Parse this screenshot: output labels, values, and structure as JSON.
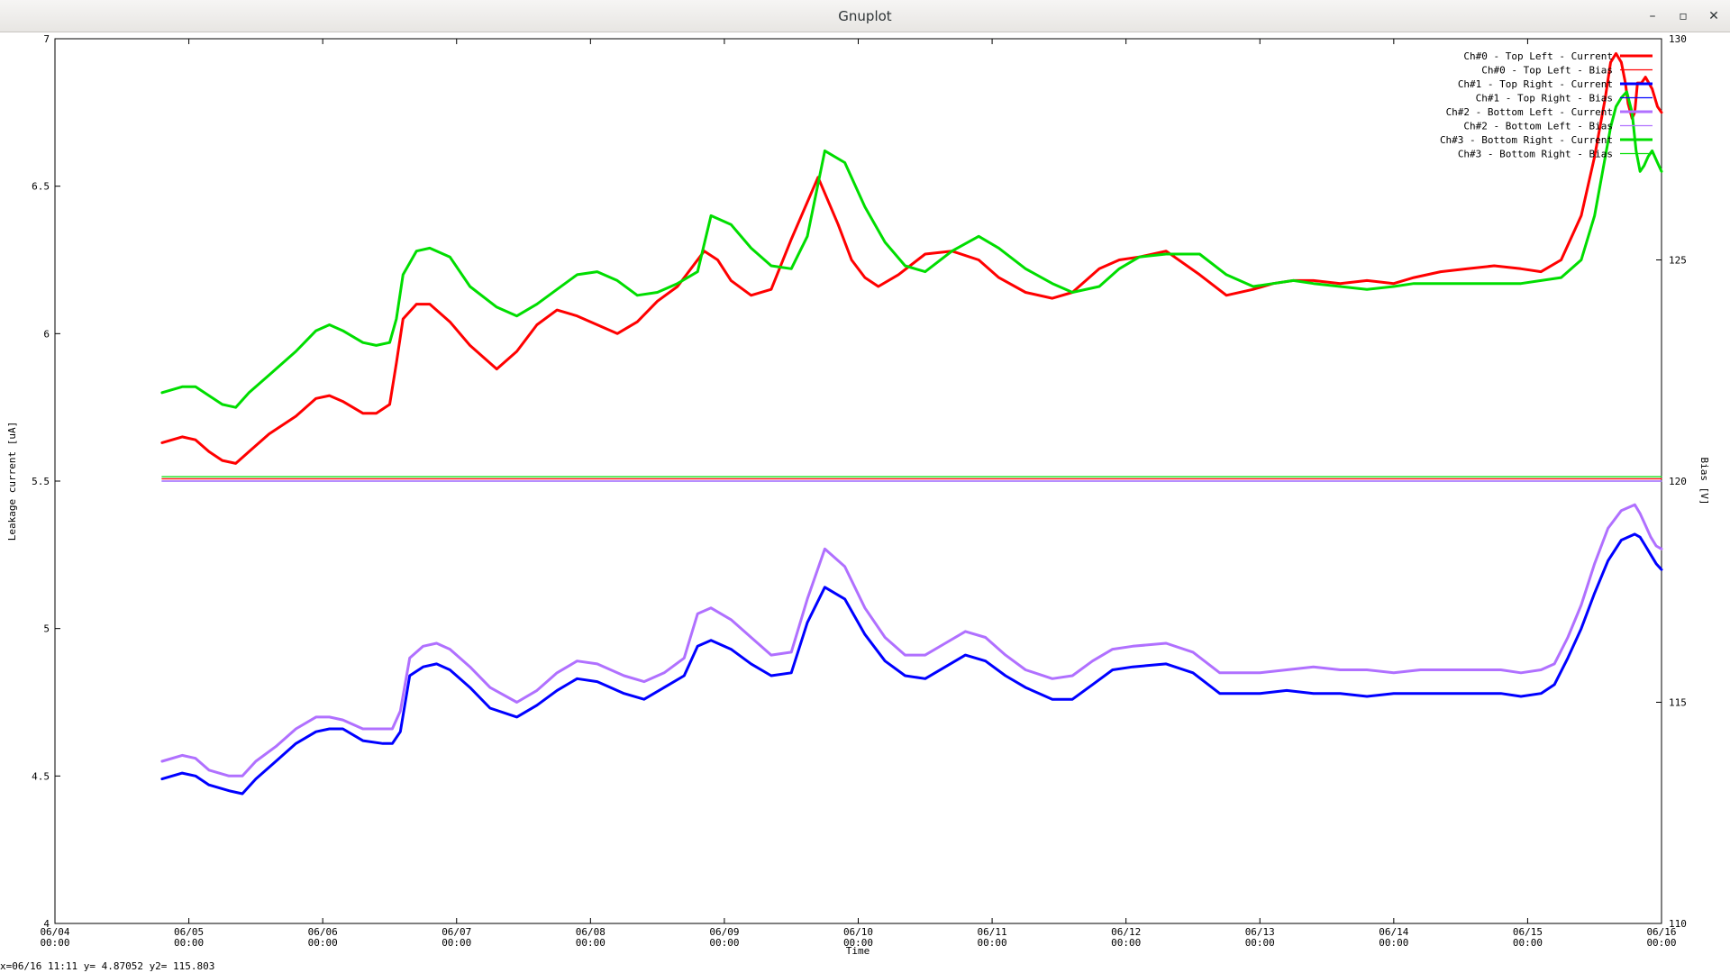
{
  "window": {
    "title": "Gnuplot",
    "controls": {
      "minimize": "–",
      "maximize": "▫",
      "close": "✕"
    }
  },
  "status_text": "x=06/16 11:11 y= 4.87052 y2= 115.803",
  "chart_data": {
    "type": "line",
    "title": "",
    "xlabel": "Time",
    "ylabel": "Leakage current [uA]",
    "y2label": "Bias [V]",
    "xlim": [
      "06/04 00:00",
      "06/16 00:00"
    ],
    "ylim": [
      4,
      7
    ],
    "y2lim": [
      110,
      130
    ],
    "x_ticks": [
      {
        "d": "06/04",
        "t": "00:00"
      },
      {
        "d": "06/05",
        "t": "00:00"
      },
      {
        "d": "06/06",
        "t": "00:00"
      },
      {
        "d": "06/07",
        "t": "00:00"
      },
      {
        "d": "06/08",
        "t": "00:00"
      },
      {
        "d": "06/09",
        "t": "00:00"
      },
      {
        "d": "06/10",
        "t": "00:00"
      },
      {
        "d": "06/11",
        "t": "00:00"
      },
      {
        "d": "06/12",
        "t": "00:00"
      },
      {
        "d": "06/13",
        "t": "00:00"
      },
      {
        "d": "06/14",
        "t": "00:00"
      },
      {
        "d": "06/15",
        "t": "00:00"
      },
      {
        "d": "06/16",
        "t": "00:00"
      }
    ],
    "y_ticks": [
      "4",
      "4.5",
      "5",
      "5.5",
      "6",
      "6.5",
      "7"
    ],
    "y2_ticks": [
      "110",
      "115",
      "120",
      "125",
      "130"
    ],
    "grid": false,
    "legend_position": "top-right",
    "x_unit": "days since 06/04 00:00",
    "series": [
      {
        "name": "Ch#0 - Top Left - Current",
        "axis": "y",
        "color": "#ff0000",
        "width": "thick",
        "x": [
          0.8,
          0.95,
          1.05,
          1.15,
          1.25,
          1.35,
          1.45,
          1.6,
          1.8,
          1.95,
          2.05,
          2.15,
          2.3,
          2.4,
          2.5,
          2.55,
          2.6,
          2.7,
          2.8,
          2.95,
          3.1,
          3.3,
          3.45,
          3.6,
          3.75,
          3.9,
          4.05,
          4.2,
          4.35,
          4.5,
          4.65,
          4.85,
          4.95,
          5.05,
          5.2,
          5.35,
          5.5,
          5.7,
          5.85,
          5.95,
          6.05,
          6.15,
          6.3,
          6.5,
          6.7,
          6.9,
          7.05,
          7.25,
          7.45,
          7.6,
          7.8,
          7.95,
          8.1,
          8.3,
          8.55,
          8.75,
          8.95,
          9.1,
          9.25,
          9.4,
          9.6,
          9.8,
          10.0,
          10.15,
          10.35,
          10.55,
          10.75,
          10.95,
          11.1,
          11.25,
          11.4,
          11.5,
          11.58,
          11.62,
          11.66,
          11.7,
          11.73,
          11.75,
          11.78,
          11.8,
          11.82,
          11.85,
          11.88,
          11.93,
          11.97,
          12.0
        ],
        "y": [
          5.63,
          5.65,
          5.64,
          5.6,
          5.57,
          5.56,
          5.6,
          5.66,
          5.72,
          5.78,
          5.79,
          5.77,
          5.73,
          5.73,
          5.76,
          5.9,
          6.05,
          6.1,
          6.1,
          6.04,
          5.96,
          5.88,
          5.94,
          6.03,
          6.08,
          6.06,
          6.03,
          6.0,
          6.04,
          6.11,
          6.16,
          6.28,
          6.25,
          6.18,
          6.13,
          6.15,
          6.32,
          6.53,
          6.37,
          6.25,
          6.19,
          6.16,
          6.2,
          6.27,
          6.28,
          6.25,
          6.19,
          6.14,
          6.12,
          6.14,
          6.22,
          6.25,
          6.26,
          6.28,
          6.2,
          6.13,
          6.15,
          6.17,
          6.18,
          6.18,
          6.17,
          6.18,
          6.17,
          6.19,
          6.21,
          6.22,
          6.23,
          6.22,
          6.21,
          6.25,
          6.4,
          6.6,
          6.8,
          6.92,
          6.95,
          6.92,
          6.85,
          6.78,
          6.73,
          6.75,
          6.85,
          6.85,
          6.87,
          6.83,
          6.77,
          6.75
        ]
      },
      {
        "name": "Ch#0 - Top Left - Bias",
        "axis": "y2",
        "color": "#ff0000",
        "width": "thin",
        "x": [
          0.8,
          12.0
        ],
        "y": [
          120.05,
          120.05
        ]
      },
      {
        "name": "Ch#1 - Top Right - Current",
        "axis": "y",
        "color": "#0000ff",
        "width": "thick",
        "x": [
          0.8,
          0.95,
          1.05,
          1.15,
          1.3,
          1.4,
          1.5,
          1.65,
          1.8,
          1.95,
          2.05,
          2.15,
          2.3,
          2.45,
          2.52,
          2.58,
          2.65,
          2.75,
          2.85,
          2.95,
          3.1,
          3.25,
          3.45,
          3.6,
          3.75,
          3.9,
          4.05,
          4.25,
          4.4,
          4.55,
          4.7,
          4.8,
          4.9,
          5.05,
          5.2,
          5.35,
          5.5,
          5.62,
          5.75,
          5.9,
          6.05,
          6.2,
          6.35,
          6.5,
          6.65,
          6.8,
          6.95,
          7.1,
          7.25,
          7.45,
          7.6,
          7.75,
          7.9,
          8.05,
          8.3,
          8.5,
          8.7,
          9.0,
          9.2,
          9.4,
          9.6,
          9.8,
          10.0,
          10.2,
          10.4,
          10.6,
          10.8,
          10.95,
          11.1,
          11.2,
          11.3,
          11.4,
          11.5,
          11.6,
          11.7,
          11.8,
          11.84,
          11.88,
          11.92,
          11.96,
          12.0
        ],
        "y": [
          4.49,
          4.51,
          4.5,
          4.47,
          4.45,
          4.44,
          4.49,
          4.55,
          4.61,
          4.65,
          4.66,
          4.66,
          4.62,
          4.61,
          4.61,
          4.65,
          4.84,
          4.87,
          4.88,
          4.86,
          4.8,
          4.73,
          4.7,
          4.74,
          4.79,
          4.83,
          4.82,
          4.78,
          4.76,
          4.8,
          4.84,
          4.94,
          4.96,
          4.93,
          4.88,
          4.84,
          4.85,
          5.02,
          5.14,
          5.1,
          4.98,
          4.89,
          4.84,
          4.83,
          4.87,
          4.91,
          4.89,
          4.84,
          4.8,
          4.76,
          4.76,
          4.81,
          4.86,
          4.87,
          4.88,
          4.85,
          4.78,
          4.78,
          4.79,
          4.78,
          4.78,
          4.77,
          4.78,
          4.78,
          4.78,
          4.78,
          4.78,
          4.77,
          4.78,
          4.81,
          4.9,
          5.0,
          5.12,
          5.23,
          5.3,
          5.32,
          5.31,
          5.28,
          5.25,
          5.22,
          5.2
        ]
      },
      {
        "name": "Ch#1 - Top Right - Bias",
        "axis": "y2",
        "color": "#0000ff",
        "width": "thin",
        "x": [
          0.8,
          12.0
        ],
        "y": [
          120.0,
          120.0
        ]
      },
      {
        "name": "Ch#2 - Bottom Left - Current",
        "axis": "y",
        "color": "#b070ff",
        "width": "thick",
        "x": [
          0.8,
          0.95,
          1.05,
          1.15,
          1.3,
          1.4,
          1.5,
          1.65,
          1.8,
          1.95,
          2.05,
          2.15,
          2.3,
          2.45,
          2.52,
          2.58,
          2.65,
          2.75,
          2.85,
          2.95,
          3.1,
          3.25,
          3.45,
          3.6,
          3.75,
          3.9,
          4.05,
          4.25,
          4.4,
          4.55,
          4.7,
          4.8,
          4.9,
          5.05,
          5.2,
          5.35,
          5.5,
          5.62,
          5.75,
          5.9,
          6.05,
          6.2,
          6.35,
          6.5,
          6.65,
          6.8,
          6.95,
          7.1,
          7.25,
          7.45,
          7.6,
          7.75,
          7.9,
          8.05,
          8.3,
          8.5,
          8.7,
          9.0,
          9.2,
          9.4,
          9.6,
          9.8,
          10.0,
          10.2,
          10.4,
          10.6,
          10.8,
          10.95,
          11.1,
          11.2,
          11.3,
          11.4,
          11.5,
          11.6,
          11.7,
          11.8,
          11.84,
          11.88,
          11.92,
          11.96,
          12.0
        ],
        "y": [
          4.55,
          4.57,
          4.56,
          4.52,
          4.5,
          4.5,
          4.55,
          4.6,
          4.66,
          4.7,
          4.7,
          4.69,
          4.66,
          4.66,
          4.66,
          4.72,
          4.9,
          4.94,
          4.95,
          4.93,
          4.87,
          4.8,
          4.75,
          4.79,
          4.85,
          4.89,
          4.88,
          4.84,
          4.82,
          4.85,
          4.9,
          5.05,
          5.07,
          5.03,
          4.97,
          4.91,
          4.92,
          5.1,
          5.27,
          5.21,
          5.07,
          4.97,
          4.91,
          4.91,
          4.95,
          4.99,
          4.97,
          4.91,
          4.86,
          4.83,
          4.84,
          4.89,
          4.93,
          4.94,
          4.95,
          4.92,
          4.85,
          4.85,
          4.86,
          4.87,
          4.86,
          4.86,
          4.85,
          4.86,
          4.86,
          4.86,
          4.86,
          4.85,
          4.86,
          4.88,
          4.97,
          5.08,
          5.22,
          5.34,
          5.4,
          5.42,
          5.39,
          5.35,
          5.31,
          5.28,
          5.27
        ]
      },
      {
        "name": "Ch#2 - Bottom Left - Bias",
        "axis": "y2",
        "color": "#b070ff",
        "width": "thin",
        "x": [
          0.8,
          12.0
        ],
        "y": [
          120.0,
          120.0
        ]
      },
      {
        "name": "Ch#3 - Bottom Right - Current",
        "axis": "y",
        "color": "#00dd00",
        "width": "thick",
        "x": [
          0.8,
          0.95,
          1.05,
          1.15,
          1.25,
          1.35,
          1.45,
          1.6,
          1.8,
          1.95,
          2.05,
          2.15,
          2.3,
          2.4,
          2.5,
          2.55,
          2.6,
          2.7,
          2.8,
          2.95,
          3.1,
          3.3,
          3.45,
          3.6,
          3.75,
          3.9,
          4.05,
          4.2,
          4.35,
          4.5,
          4.65,
          4.8,
          4.9,
          5.05,
          5.2,
          5.35,
          5.5,
          5.62,
          5.75,
          5.9,
          6.05,
          6.2,
          6.35,
          6.5,
          6.7,
          6.9,
          7.05,
          7.25,
          7.45,
          7.6,
          7.8,
          7.95,
          8.1,
          8.3,
          8.55,
          8.75,
          8.95,
          9.1,
          9.25,
          9.4,
          9.6,
          9.8,
          10.0,
          10.15,
          10.35,
          10.55,
          10.75,
          10.95,
          11.1,
          11.25,
          11.4,
          11.5,
          11.58,
          11.62,
          11.66,
          11.7,
          11.74,
          11.78,
          11.81,
          11.84,
          11.87,
          11.9,
          11.93,
          11.97,
          12.0
        ],
        "y": [
          5.8,
          5.82,
          5.82,
          5.79,
          5.76,
          5.75,
          5.8,
          5.86,
          5.94,
          6.01,
          6.03,
          6.01,
          5.97,
          5.96,
          5.97,
          6.05,
          6.2,
          6.28,
          6.29,
          6.26,
          6.16,
          6.09,
          6.06,
          6.1,
          6.15,
          6.2,
          6.21,
          6.18,
          6.13,
          6.14,
          6.17,
          6.21,
          6.4,
          6.37,
          6.29,
          6.23,
          6.22,
          6.33,
          6.62,
          6.58,
          6.43,
          6.31,
          6.23,
          6.21,
          6.28,
          6.33,
          6.29,
          6.22,
          6.17,
          6.14,
          6.16,
          6.22,
          6.26,
          6.27,
          6.27,
          6.2,
          6.16,
          6.17,
          6.18,
          6.17,
          6.16,
          6.15,
          6.16,
          6.17,
          6.17,
          6.17,
          6.17,
          6.17,
          6.18,
          6.19,
          6.25,
          6.4,
          6.6,
          6.7,
          6.77,
          6.8,
          6.82,
          6.75,
          6.62,
          6.55,
          6.57,
          6.6,
          6.62,
          6.58,
          6.55
        ]
      },
      {
        "name": "Ch#3 - Bottom Right - Bias",
        "axis": "y2",
        "color": "#00dd00",
        "width": "thin",
        "x": [
          0.8,
          12.0
        ],
        "y": [
          120.1,
          120.1
        ]
      }
    ]
  }
}
